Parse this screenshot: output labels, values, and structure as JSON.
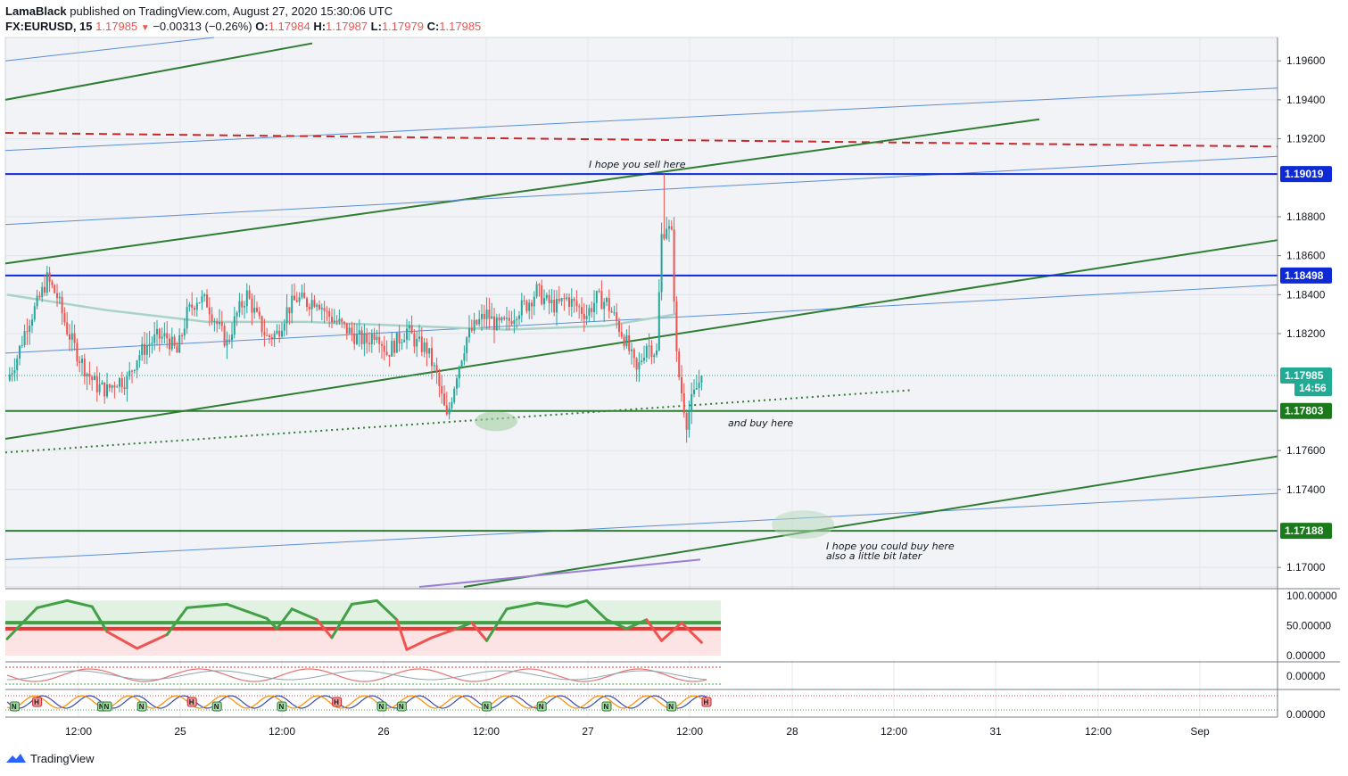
{
  "header": {
    "author": "LamaBlack",
    "published_text": "published on TradingView.com, August 27, 2020 15:30:06 UTC",
    "symbol": "FX:EURUSD, 15",
    "last": "1.17985",
    "change": "−0.00313 (−0.26%)",
    "o_label": "O:",
    "o_value": "1.17984",
    "h_label": "H:",
    "h_value": "1.17987",
    "l_label": "L:",
    "l_value": "1.17979",
    "c_label": "C:",
    "c_value": "1.17985"
  },
  "footer": {
    "brand": "TradingView"
  },
  "colors": {
    "green_line": "#2e7d32",
    "blue_line": "#5b8fd9",
    "level_blue": "#0d2ad6",
    "red_dash": "#c62828",
    "up_candle": "#26a69a",
    "down_candle": "#ef5350",
    "ma": "#a9d3c8",
    "purple": "#9b7fd4",
    "label_green": "#1b7a1b",
    "label_teal": "#22ab94"
  },
  "chart_data": {
    "type": "candlestick",
    "symbol": "FX:EURUSD",
    "timeframe": "15",
    "ylim": [
      1.169,
      1.1972
    ],
    "price_ticks": [
      "1.19600",
      "1.19400",
      "1.19200",
      "1.18800",
      "1.18600",
      "1.18400",
      "1.18200",
      "1.17600",
      "1.17400",
      "1.17000"
    ],
    "time_ticks": [
      "12:00",
      "25",
      "12:00",
      "26",
      "12:00",
      "27",
      "12:00",
      "28",
      "12:00",
      "31",
      "12:00",
      "Sep"
    ],
    "price_labels": [
      {
        "text": "1.19019",
        "value": 1.19019,
        "kind": "level"
      },
      {
        "text": "1.18498",
        "value": 1.18498,
        "kind": "level"
      },
      {
        "text": "1.17985",
        "value": 1.17985,
        "kind": "last"
      },
      {
        "text": "14:56",
        "value": 1.1792,
        "kind": "countdown"
      },
      {
        "text": "1.17803",
        "value": 1.17803,
        "kind": "support"
      },
      {
        "text": "1.17188",
        "value": 1.17188,
        "kind": "support"
      }
    ],
    "annotations": [
      {
        "text": "I hope you sell here"
      },
      {
        "text": "and buy here"
      },
      {
        "text": "I hope you could buy here"
      },
      {
        "text": "also a little bit later"
      }
    ],
    "close_path": [
      [
        0,
        1.1796
      ],
      [
        4,
        1.1808
      ],
      [
        8,
        1.1825
      ],
      [
        12,
        1.1835
      ],
      [
        16,
        1.1848
      ],
      [
        20,
        1.1839
      ],
      [
        24,
        1.1822
      ],
      [
        28,
        1.181
      ],
      [
        32,
        1.18
      ],
      [
        36,
        1.1793
      ],
      [
        40,
        1.1791
      ],
      [
        44,
        1.1796
      ],
      [
        48,
        1.1796
      ],
      [
        52,
        1.1808
      ],
      [
        56,
        1.1814
      ],
      [
        60,
        1.1818
      ],
      [
        64,
        1.1818
      ],
      [
        68,
        1.181
      ],
      [
        72,
        1.183
      ],
      [
        76,
        1.1838
      ],
      [
        80,
        1.1836
      ],
      [
        84,
        1.1825
      ],
      [
        88,
        1.1815
      ],
      [
        92,
        1.183
      ],
      [
        96,
        1.184
      ],
      [
        100,
        1.1828
      ],
      [
        104,
        1.1818
      ],
      [
        108,
        1.182
      ],
      [
        112,
        1.1832
      ],
      [
        116,
        1.1838
      ],
      [
        120,
        1.1836
      ],
      [
        124,
        1.1838
      ],
      [
        128,
        1.183
      ],
      [
        132,
        1.1826
      ],
      [
        136,
        1.1822
      ],
      [
        140,
        1.1818
      ],
      [
        144,
        1.1816
      ],
      [
        148,
        1.1822
      ],
      [
        152,
        1.181
      ],
      [
        156,
        1.1816
      ],
      [
        160,
        1.1822
      ],
      [
        164,
        1.1815
      ],
      [
        168,
        1.1812
      ],
      [
        172,
        1.1798
      ],
      [
        176,
        1.1776
      ],
      [
        180,
        1.18
      ],
      [
        184,
        1.1818
      ],
      [
        188,
        1.1825
      ],
      [
        192,
        1.183
      ],
      [
        196,
        1.1824
      ],
      [
        200,
        1.1825
      ],
      [
        204,
        1.1832
      ],
      [
        208,
        1.1835
      ],
      [
        212,
        1.1842
      ],
      [
        216,
        1.1836
      ],
      [
        220,
        1.1834
      ],
      [
        224,
        1.1838
      ],
      [
        228,
        1.1834
      ],
      [
        232,
        1.183
      ],
      [
        236,
        1.1838
      ],
      [
        240,
        1.1836
      ],
      [
        244,
        1.1826
      ],
      [
        248,
        1.1815
      ],
      [
        252,
        1.18
      ],
      [
        256,
        1.1815
      ],
      [
        260,
        1.181
      ],
      [
        262,
        1.187
      ],
      [
        264,
        1.1876
      ],
      [
        266,
        1.187
      ],
      [
        267,
        1.184
      ],
      [
        268,
        1.1808
      ],
      [
        269,
        1.1798
      ],
      [
        270,
        1.179
      ],
      [
        272,
        1.1775
      ],
      [
        274,
        1.1785
      ],
      [
        276,
        1.1792
      ],
      [
        278,
        1.17985
      ]
    ],
    "indicators": [
      {
        "name": "oscillator",
        "ticks": [
          "100.00000",
          "50.00000",
          "0.00000"
        ],
        "series": [
          [
            0,
            28
          ],
          [
            12,
            80
          ],
          [
            24,
            92
          ],
          [
            34,
            82
          ],
          [
            40,
            40
          ],
          [
            52,
            12
          ],
          [
            64,
            35
          ],
          [
            72,
            80
          ],
          [
            88,
            86
          ],
          [
            104,
            62
          ],
          [
            108,
            45
          ],
          [
            114,
            78
          ],
          [
            124,
            60
          ],
          [
            130,
            30
          ],
          [
            138,
            86
          ],
          [
            148,
            92
          ],
          [
            156,
            60
          ],
          [
            160,
            10
          ],
          [
            170,
            30
          ],
          [
            180,
            45
          ],
          [
            186,
            55
          ],
          [
            192,
            25
          ],
          [
            200,
            78
          ],
          [
            212,
            88
          ],
          [
            224,
            82
          ],
          [
            232,
            92
          ],
          [
            240,
            60
          ],
          [
            248,
            45
          ],
          [
            256,
            60
          ],
          [
            262,
            25
          ],
          [
            270,
            55
          ],
          [
            278,
            22
          ]
        ]
      },
      {
        "name": "indicator-2",
        "ticks": [
          "0.00000"
        ]
      },
      {
        "name": "indicator-3",
        "ticks": [
          "0.00000"
        ],
        "signal_marks": [
          "N",
          "H"
        ]
      }
    ]
  }
}
